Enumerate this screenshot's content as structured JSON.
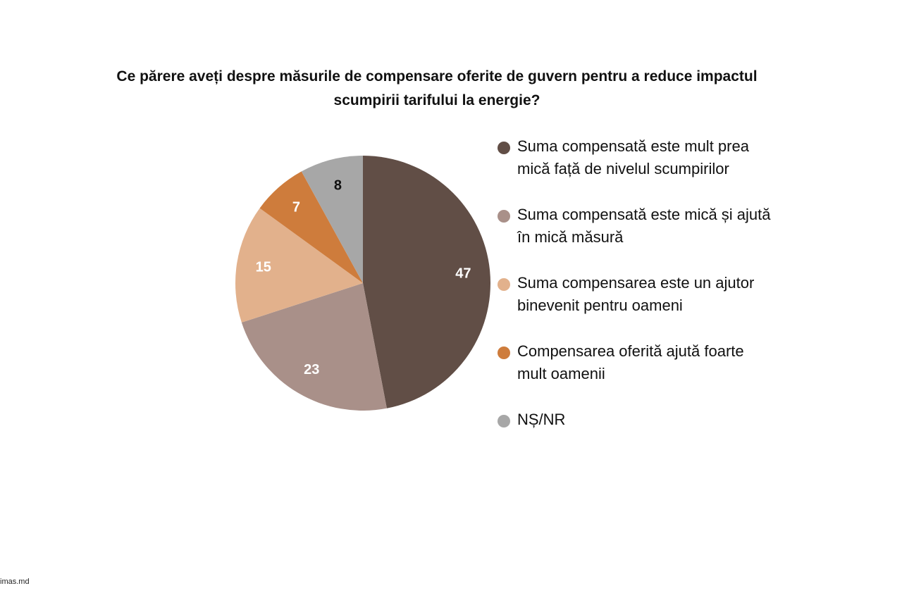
{
  "title": {
    "line1": "Ce părere aveți despre măsurile de compensare oferite de guvern pentru a reduce impactul",
    "line2": "scumpirii tarifului la energie?"
  },
  "chart_data": {
    "type": "pie",
    "title": "Ce părere aveți despre măsurile de compensare oferite de guvern pentru a reduce impactul scumpirii tarifului la energie?",
    "start_angle": "top",
    "direction": "clockwise",
    "legend_position": "right",
    "slices": [
      {
        "label": "Suma compensată este mult prea mică față de nivelul scumpirilor",
        "value": 47,
        "color": "#614e46",
        "label_color": "#ffffff"
      },
      {
        "label": "Suma compensată este mică și ajută în mică măsură",
        "value": 23,
        "color": "#a99089",
        "label_color": "#ffffff"
      },
      {
        "label": "Suma compensarea este un ajutor binevenit pentru oameni",
        "value": 15,
        "color": "#e2b18c",
        "label_color": "#ffffff"
      },
      {
        "label": "Compensarea oferită ajută foarte mult oamenii",
        "value": 7,
        "color": "#ce7c3c",
        "label_color": "#ffffff"
      },
      {
        "label": "NȘ/NR",
        "value": 8,
        "color": "#a7a7a7",
        "label_color": "#111111"
      }
    ]
  },
  "legend": {
    "items": [
      {
        "line1": "Suma compensată este mult prea",
        "line2": "mică față de nivelul scumpirilor"
      },
      {
        "line1": "Suma compensată este mică și ajută",
        "line2": "în mică măsură"
      },
      {
        "line1": "Suma compensarea este un ajutor",
        "line2": "binevenit pentru oameni"
      },
      {
        "line1": "Compensarea oferită ajută foarte",
        "line2": "mult oamenii"
      },
      {
        "line1": "NȘ/NR",
        "line2": ""
      }
    ]
  },
  "footer": {
    "source": "imas.md"
  }
}
